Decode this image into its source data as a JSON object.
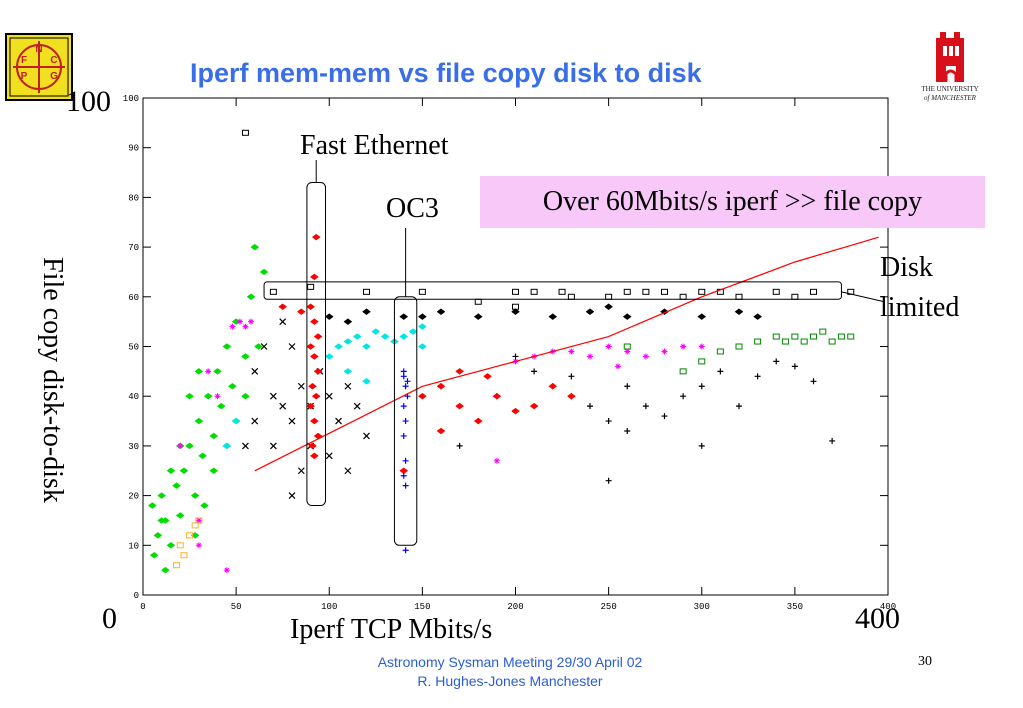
{
  "slide": {
    "title": "Iperf mem-mem vs file copy disk to disk",
    "footer_line1": "Astronomy Sysman Meeting  29/30 April 02",
    "footer_line2": "R. Hughes-Jones  Manchester",
    "page_number": "30",
    "callout": "Over 60Mbits/s iperf >> file copy",
    "xlabel_big": "Iperf  TCP Mbits/s",
    "ylabel_big": "File copy disk-to-disk",
    "x_min_big": "0",
    "x_max_big": "400",
    "y_max_big": "100",
    "label_fast_ethernet": "Fast Ethernet",
    "label_oc3": "OC3",
    "label_disk_line1": "Disk",
    "label_disk_line2": "limited",
    "logo_left_letters": [
      "N",
      "F",
      "C",
      "P",
      "G"
    ],
    "logo_right_line1": "THE UNIVERSITY",
    "logo_right_line2": "of MANCHESTER",
    "colors": {
      "title": "#3a6ee8",
      "callout_bg": "#f8c8f8",
      "footer": "#2a5cd8"
    }
  },
  "chart_data": {
    "type": "scatter",
    "xlim": [
      0,
      400
    ],
    "ylim": [
      0,
      100
    ],
    "x_ticks": [
      0,
      50,
      100,
      150,
      200,
      250,
      300,
      350,
      400
    ],
    "y_ticks": [
      0,
      10,
      20,
      30,
      40,
      50,
      60,
      70,
      80,
      90,
      100
    ],
    "grid": false,
    "series": [
      {
        "color": "#00dd00",
        "marker": "diamond",
        "points": [
          [
            5,
            18
          ],
          [
            8,
            12
          ],
          [
            10,
            20
          ],
          [
            12,
            15
          ],
          [
            15,
            10
          ],
          [
            18,
            22
          ],
          [
            20,
            16
          ],
          [
            22,
            25
          ],
          [
            25,
            30
          ],
          [
            28,
            20
          ],
          [
            30,
            35
          ],
          [
            32,
            28
          ],
          [
            35,
            40
          ],
          [
            38,
            32
          ],
          [
            40,
            45
          ],
          [
            42,
            38
          ],
          [
            45,
            50
          ],
          [
            48,
            42
          ],
          [
            50,
            55
          ],
          [
            55,
            48
          ],
          [
            58,
            60
          ],
          [
            60,
            70
          ],
          [
            62,
            50
          ],
          [
            65,
            65
          ],
          [
            30,
            45
          ],
          [
            25,
            40
          ],
          [
            20,
            30
          ],
          [
            15,
            25
          ],
          [
            10,
            15
          ],
          [
            6,
            8
          ],
          [
            12,
            5
          ],
          [
            45,
            30
          ],
          [
            38,
            25
          ],
          [
            50,
            35
          ],
          [
            55,
            40
          ],
          [
            28,
            12
          ],
          [
            33,
            18
          ]
        ]
      },
      {
        "color": "#ff00ff",
        "marker": "star",
        "points": [
          [
            48,
            54
          ],
          [
            52,
            55
          ],
          [
            55,
            54
          ],
          [
            58,
            55
          ],
          [
            20,
            30
          ],
          [
            40,
            40
          ],
          [
            30,
            15
          ],
          [
            35,
            45
          ],
          [
            230,
            49
          ],
          [
            240,
            48
          ],
          [
            250,
            50
          ],
          [
            260,
            49
          ],
          [
            270,
            48
          ],
          [
            280,
            49
          ],
          [
            290,
            50
          ],
          [
            200,
            47
          ],
          [
            210,
            48
          ],
          [
            220,
            49
          ],
          [
            300,
            50
          ],
          [
            255,
            46
          ],
          [
            190,
            27
          ],
          [
            45,
            5
          ],
          [
            30,
            10
          ]
        ]
      },
      {
        "color": "#00e5e5",
        "marker": "diamond",
        "points": [
          [
            100,
            48
          ],
          [
            105,
            50
          ],
          [
            110,
            51
          ],
          [
            115,
            52
          ],
          [
            120,
            50
          ],
          [
            125,
            53
          ],
          [
            130,
            52
          ],
          [
            135,
            51
          ],
          [
            140,
            52
          ],
          [
            145,
            53
          ],
          [
            150,
            54
          ],
          [
            150,
            50
          ],
          [
            110,
            45
          ],
          [
            120,
            43
          ],
          [
            50,
            35
          ],
          [
            45,
            30
          ]
        ]
      },
      {
        "color": "#000000",
        "marker": "x",
        "points": [
          [
            70,
            40
          ],
          [
            75,
            38
          ],
          [
            80,
            35
          ],
          [
            85,
            42
          ],
          [
            90,
            38
          ],
          [
            95,
            45
          ],
          [
            100,
            40
          ],
          [
            105,
            35
          ],
          [
            110,
            42
          ],
          [
            115,
            38
          ],
          [
            120,
            32
          ],
          [
            60,
            45
          ],
          [
            65,
            50
          ],
          [
            75,
            55
          ],
          [
            80,
            50
          ],
          [
            70,
            30
          ],
          [
            85,
            25
          ],
          [
            90,
            30
          ],
          [
            100,
            28
          ],
          [
            110,
            25
          ],
          [
            80,
            20
          ],
          [
            60,
            35
          ],
          [
            55,
            30
          ]
        ]
      },
      {
        "color": "#000000",
        "marker": "diamond",
        "points": [
          [
            100,
            56
          ],
          [
            120,
            57
          ],
          [
            140,
            56
          ],
          [
            160,
            57
          ],
          [
            180,
            56
          ],
          [
            200,
            57
          ],
          [
            220,
            56
          ],
          [
            240,
            57
          ],
          [
            260,
            56
          ],
          [
            280,
            57
          ],
          [
            300,
            56
          ],
          [
            320,
            57
          ],
          [
            330,
            56
          ],
          [
            110,
            55
          ],
          [
            150,
            56
          ],
          [
            250,
            58
          ]
        ]
      },
      {
        "color": "#000000",
        "marker": "plus",
        "points": [
          [
            200,
            48
          ],
          [
            210,
            45
          ],
          [
            220,
            42
          ],
          [
            230,
            40
          ],
          [
            240,
            38
          ],
          [
            250,
            35
          ],
          [
            260,
            33
          ],
          [
            270,
            38
          ],
          [
            280,
            36
          ],
          [
            290,
            40
          ],
          [
            300,
            42
          ],
          [
            310,
            45
          ],
          [
            320,
            38
          ],
          [
            330,
            44
          ],
          [
            340,
            47
          ],
          [
            350,
            46
          ],
          [
            360,
            43
          ],
          [
            370,
            31
          ],
          [
            250,
            23
          ],
          [
            300,
            30
          ],
          [
            180,
            35
          ],
          [
            190,
            40
          ],
          [
            160,
            42
          ],
          [
            170,
            30
          ],
          [
            230,
            44
          ],
          [
            260,
            42
          ]
        ]
      },
      {
        "color": "#ff0000",
        "marker": "diamond",
        "points": [
          [
            90,
            58
          ],
          [
            92,
            55
          ],
          [
            94,
            52
          ],
          [
            90,
            50
          ],
          [
            92,
            48
          ],
          [
            94,
            45
          ],
          [
            91,
            42
          ],
          [
            93,
            40
          ],
          [
            90,
            38
          ],
          [
            92,
            35
          ],
          [
            94,
            32
          ],
          [
            92,
            28
          ],
          [
            93,
            72
          ],
          [
            92,
            64
          ],
          [
            91,
            30
          ],
          [
            150,
            40
          ],
          [
            160,
            42
          ],
          [
            170,
            38
          ],
          [
            180,
            35
          ],
          [
            190,
            40
          ],
          [
            200,
            37
          ],
          [
            210,
            38
          ],
          [
            220,
            42
          ],
          [
            230,
            40
          ],
          [
            160,
            33
          ],
          [
            140,
            25
          ],
          [
            170,
            45
          ],
          [
            185,
            44
          ],
          [
            75,
            58
          ],
          [
            85,
            57
          ]
        ]
      },
      {
        "color": "#0000ff",
        "marker": "plus",
        "points": [
          [
            140,
            44
          ],
          [
            141,
            42
          ],
          [
            142,
            40
          ],
          [
            140,
            38
          ],
          [
            141,
            35
          ],
          [
            140,
            45
          ],
          [
            142,
            43
          ],
          [
            141,
            27
          ],
          [
            140,
            24
          ],
          [
            141,
            22
          ],
          [
            140,
            32
          ],
          [
            141,
            9
          ]
        ]
      },
      {
        "color": "#008800",
        "marker": "square",
        "points": [
          [
            320,
            50
          ],
          [
            330,
            51
          ],
          [
            340,
            52
          ],
          [
            345,
            51
          ],
          [
            350,
            52
          ],
          [
            355,
            51
          ],
          [
            360,
            52
          ],
          [
            365,
            53
          ],
          [
            370,
            51
          ],
          [
            375,
            52
          ],
          [
            380,
            52
          ],
          [
            300,
            47
          ],
          [
            290,
            45
          ],
          [
            310,
            49
          ],
          [
            260,
            50
          ]
        ]
      },
      {
        "color": "#000000",
        "marker": "square",
        "points": [
          [
            55,
            93
          ],
          [
            90,
            62
          ],
          [
            150,
            61
          ],
          [
            200,
            61
          ],
          [
            230,
            60
          ],
          [
            260,
            61
          ],
          [
            270,
            61
          ],
          [
            280,
            61
          ],
          [
            290,
            60
          ],
          [
            300,
            61
          ],
          [
            310,
            61
          ],
          [
            320,
            60
          ],
          [
            340,
            61
          ],
          [
            360,
            61
          ],
          [
            380,
            61
          ],
          [
            180,
            59
          ],
          [
            200,
            58
          ],
          [
            210,
            61
          ],
          [
            225,
            61
          ],
          [
            120,
            61
          ],
          [
            250,
            60
          ],
          [
            350,
            60
          ],
          [
            70,
            61
          ]
        ]
      },
      {
        "color": "#ffb030",
        "marker": "square",
        "points": [
          [
            20,
            10
          ],
          [
            25,
            12
          ],
          [
            28,
            14
          ],
          [
            22,
            8
          ],
          [
            18,
            6
          ],
          [
            30,
            15
          ]
        ]
      },
      {
        "color": "#ff0000",
        "marker": "line",
        "points": [
          [
            60,
            25
          ],
          [
            150,
            42
          ],
          [
            200,
            47
          ],
          [
            250,
            52
          ],
          [
            300,
            60
          ],
          [
            350,
            67
          ],
          [
            395,
            72
          ]
        ]
      }
    ]
  }
}
